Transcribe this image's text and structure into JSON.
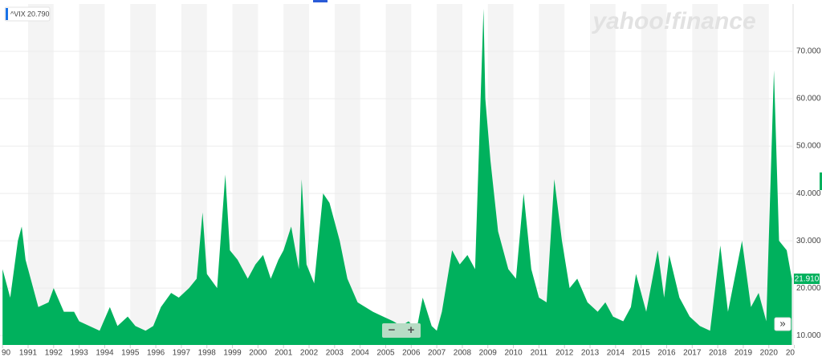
{
  "chart_data": {
    "type": "area",
    "watermark": "yahoo!finance",
    "legend": {
      "symbol": "^VIX",
      "value": "20.790"
    },
    "last_price": "21.910",
    "buttons": [
      "−",
      "+",
      "»"
    ],
    "color": "#00b15d",
    "series": [
      {
        "name": "^VIX",
        "x": [
          1990.0,
          1990.3,
          1990.6,
          1990.75,
          1990.9,
          1991.1,
          1991.4,
          1991.8,
          1992.0,
          1992.4,
          1992.8,
          1993.0,
          1993.4,
          1993.8,
          1994.2,
          1994.5,
          1994.9,
          1995.2,
          1995.6,
          1995.9,
          1996.2,
          1996.6,
          1996.9,
          1997.3,
          1997.6,
          1997.83,
          1998.0,
          1998.4,
          1998.72,
          1998.9,
          1999.2,
          1999.6,
          1999.9,
          2000.2,
          2000.5,
          2000.8,
          2001.0,
          2001.3,
          2001.6,
          2001.71,
          2001.9,
          2002.2,
          2002.55,
          2002.8,
          2003.0,
          2003.2,
          2003.5,
          2003.9,
          2004.2,
          2004.5,
          2004.9,
          2005.3,
          2005.6,
          2005.9,
          2006.2,
          2006.45,
          2006.8,
          2007.0,
          2007.2,
          2007.6,
          2007.9,
          2008.2,
          2008.5,
          2008.83,
          2008.9,
          2009.1,
          2009.4,
          2009.8,
          2010.1,
          2010.4,
          2010.7,
          2011.0,
          2011.3,
          2011.6,
          2011.9,
          2012.2,
          2012.5,
          2012.9,
          2013.3,
          2013.6,
          2013.9,
          2014.3,
          2014.6,
          2014.8,
          2015.2,
          2015.65,
          2015.9,
          2016.1,
          2016.5,
          2016.9,
          2017.3,
          2017.7,
          2018.1,
          2018.4,
          2018.95,
          2019.3,
          2019.6,
          2019.9,
          2020.2,
          2020.4,
          2020.7,
          2020.9
        ],
        "values": [
          24,
          18,
          30,
          33,
          26,
          22,
          16,
          17,
          20,
          15,
          15,
          13,
          12,
          11,
          16,
          12,
          14,
          12,
          11,
          12,
          16,
          19,
          18,
          20,
          22,
          36,
          23,
          20,
          44,
          28,
          26,
          22,
          25,
          27,
          22,
          26,
          28,
          33,
          24,
          43,
          25,
          21,
          40,
          38,
          34,
          30,
          22,
          17,
          16,
          15,
          14,
          13,
          12,
          13,
          11,
          18,
          12,
          11,
          15,
          28,
          25,
          27,
          24,
          79,
          60,
          47,
          32,
          24,
          22,
          40,
          24,
          18,
          17,
          43,
          30,
          20,
          22,
          17,
          15,
          17,
          14,
          13,
          16,
          23,
          15,
          28,
          18,
          27,
          18,
          14,
          12,
          11,
          29,
          15,
          30,
          16,
          19,
          13,
          66,
          30,
          28,
          22
        ]
      }
    ],
    "xlim": [
      1989.9,
      2020.95
    ],
    "xticks": [
      {
        "value": 1990,
        "label": "90"
      },
      1991,
      1992,
      1993,
      1994,
      1995,
      1996,
      1997,
      1998,
      1999,
      2000,
      2001,
      2002,
      2003,
      2004,
      2005,
      2006,
      2007,
      2008,
      2009,
      2010,
      2011,
      2012,
      2013,
      2014,
      2015,
      2016,
      2017,
      2018,
      2019,
      2020,
      {
        "value": 2021,
        "label": "20"
      }
    ],
    "ylim": [
      8,
      80
    ],
    "yticks": [
      {
        "value": 10,
        "label": "10.000"
      },
      {
        "value": 20,
        "label": "20.000"
      },
      {
        "value": 30,
        "label": "30.000"
      },
      {
        "value": 40,
        "label": "40.000"
      },
      {
        "value": 50,
        "label": "50.000"
      },
      {
        "value": 60,
        "label": "60.000"
      },
      {
        "value": 70,
        "label": "70.000"
      }
    ],
    "grid": true
  }
}
